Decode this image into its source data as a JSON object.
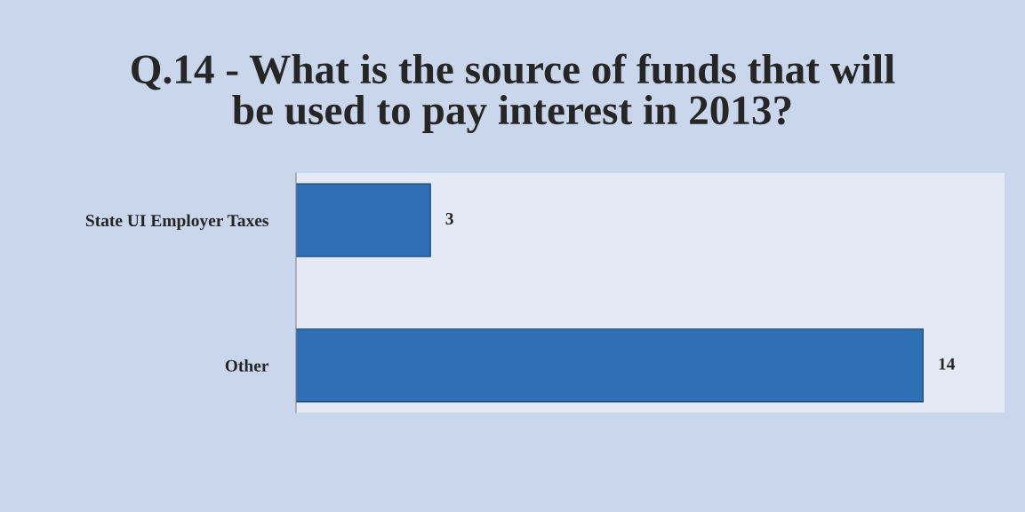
{
  "chart_data": {
    "type": "bar",
    "orientation": "horizontal",
    "title": "Q.14 - What is the source of funds that will\nbe used to pay interest in 2013?",
    "categories": [
      "State UI Employer Taxes",
      "Other"
    ],
    "values": [
      3,
      14
    ],
    "color": "#2e6fb5",
    "data_labels": true,
    "grid": false,
    "legend": false
  }
}
